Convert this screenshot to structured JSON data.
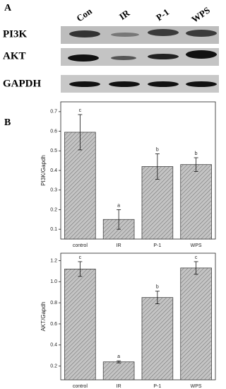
{
  "blot": {
    "label": "A",
    "columns": [
      "Con",
      "IR",
      "P-1",
      "WPS"
    ],
    "rows": [
      "PI3K",
      "AKT",
      "GAPDH"
    ]
  },
  "panel_b_label": "B",
  "chart_data": [
    {
      "type": "bar",
      "y_label": "PI3K/Gapdh",
      "categories": [
        "control",
        "IR",
        "P-1",
        "WPS"
      ],
      "values": [
        0.595,
        0.15,
        0.42,
        0.43
      ],
      "errors": [
        0.09,
        0.05,
        0.065,
        0.035
      ],
      "annotations": [
        "c",
        "a",
        "b",
        "b"
      ],
      "color": "#c4c4c4",
      "ylim": [
        0.05,
        0.75
      ],
      "yticks": [
        {
          "value": 0.1,
          "label": "0.1"
        },
        {
          "value": 0.2,
          "label": "0.2"
        },
        {
          "value": 0.3,
          "label": "0.3"
        },
        {
          "value": 0.4,
          "label": "0.4"
        },
        {
          "value": 0.5,
          "label": "0.5"
        },
        {
          "value": 0.6,
          "label": "0.6"
        },
        {
          "value": 0.7,
          "label": "0.7"
        }
      ]
    },
    {
      "type": "bar",
      "y_label": "AKT/Gapdh",
      "categories": [
        "control",
        "IR",
        "P-1",
        "WPS"
      ],
      "values": [
        1.12,
        0.24,
        0.85,
        1.13
      ],
      "errors": [
        0.07,
        0.01,
        0.06,
        0.06
      ],
      "annotations": [
        "c",
        "a",
        "b",
        "c"
      ],
      "color": "#c4c4c4",
      "ylim": [
        0.07,
        1.27
      ],
      "yticks": [
        {
          "value": 0.2,
          "label": "0.2"
        },
        {
          "value": 0.4,
          "label": "0.4"
        },
        {
          "value": 0.6,
          "label": "0.6"
        },
        {
          "value": 0.8,
          "label": "0.8"
        },
        {
          "value": 1.0,
          "label": "1.0"
        },
        {
          "value": 1.2,
          "label": "1.2"
        }
      ]
    }
  ]
}
